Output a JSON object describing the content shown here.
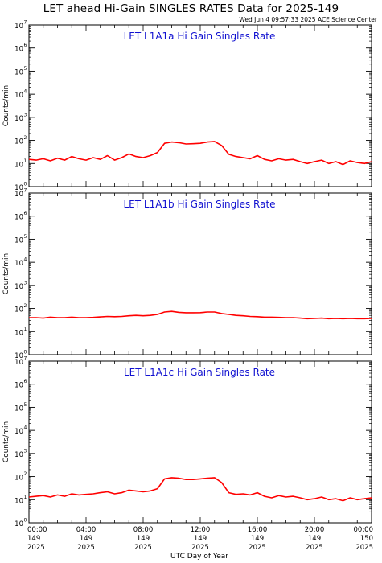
{
  "header": {
    "title": "LET ahead Hi-Gain SINGLES RATES Data for 2025-149",
    "timestamp": "Wed Jun  4 09:57:33 2025 ACE Science Center"
  },
  "chart_data": {
    "type": "line",
    "xlabel": "UTC Day of Year",
    "ylabel": "Counts/min",
    "y_scale": "log",
    "ylim": [
      1,
      10000000
    ],
    "xlim": [
      0,
      24
    ],
    "y_ticks": [
      {
        "base": "10",
        "exp": "0"
      },
      {
        "base": "10",
        "exp": "1"
      },
      {
        "base": "10",
        "exp": "2"
      },
      {
        "base": "10",
        "exp": "3"
      },
      {
        "base": "10",
        "exp": "4"
      },
      {
        "base": "10",
        "exp": "5"
      },
      {
        "base": "10",
        "exp": "6"
      },
      {
        "base": "10",
        "exp": "7"
      }
    ],
    "x_ticks": [
      {
        "hour": 0,
        "time": "00:00",
        "day": "149",
        "year": "2025"
      },
      {
        "hour": 4,
        "time": "04:00",
        "day": "149",
        "year": "2025"
      },
      {
        "hour": 8,
        "time": "08:00",
        "day": "149",
        "year": "2025"
      },
      {
        "hour": 12,
        "time": "12:00",
        "day": "149",
        "year": "2025"
      },
      {
        "hour": 16,
        "time": "16:00",
        "day": "149",
        "year": "2025"
      },
      {
        "hour": 20,
        "time": "20:00",
        "day": "149",
        "year": "2025"
      },
      {
        "hour": 24,
        "time": "00:00",
        "day": "150",
        "year": "2025"
      }
    ],
    "line_color": "#ff0000",
    "title_color": "#1010d0",
    "panels": [
      {
        "title": "LET L1A1a Hi Gain Singles Rate",
        "series": {
          "x": [
            0,
            0.5,
            1,
            1.5,
            2,
            2.5,
            3,
            3.5,
            4,
            4.5,
            5,
            5.5,
            6,
            6.5,
            7,
            7.5,
            8,
            8.5,
            9,
            9.5,
            10,
            10.5,
            11,
            11.5,
            12,
            12.5,
            13,
            13.5,
            14,
            14.5,
            15,
            15.5,
            16,
            16.5,
            17,
            17.5,
            18,
            18.5,
            19,
            19.5,
            20,
            20.5,
            21,
            21.5,
            22,
            22.5,
            23,
            23.5,
            24
          ],
          "y": [
            15,
            14,
            16,
            13,
            17,
            14,
            20,
            16,
            14,
            18,
            15,
            22,
            14,
            18,
            26,
            20,
            18,
            22,
            30,
            75,
            85,
            80,
            70,
            72,
            75,
            85,
            90,
            60,
            25,
            20,
            18,
            16,
            22,
            15,
            13,
            16,
            14,
            15,
            12,
            10,
            12,
            14,
            10,
            12,
            9,
            13,
            11,
            10,
            12
          ]
        }
      },
      {
        "title": "LET L1A1b Hi Gain Singles Rate",
        "series": {
          "x": [
            0,
            0.5,
            1,
            1.5,
            2,
            2.5,
            3,
            3.5,
            4,
            4.5,
            5,
            5.5,
            6,
            6.5,
            7,
            7.5,
            8,
            8.5,
            9,
            9.5,
            10,
            10.5,
            11,
            11.5,
            12,
            12.5,
            13,
            13.5,
            14,
            14.5,
            15,
            15.5,
            16,
            16.5,
            17,
            17.5,
            18,
            18.5,
            19,
            19.5,
            20,
            20.5,
            21,
            21.5,
            22,
            22.5,
            23,
            23.5,
            24
          ],
          "y": [
            40,
            40,
            38,
            42,
            40,
            40,
            42,
            40,
            40,
            41,
            43,
            45,
            44,
            45,
            48,
            50,
            48,
            50,
            55,
            70,
            75,
            68,
            65,
            65,
            66,
            70,
            70,
            60,
            55,
            50,
            48,
            45,
            44,
            42,
            42,
            41,
            40,
            40,
            38,
            36,
            37,
            38,
            36,
            37,
            36,
            37,
            36,
            36,
            37
          ]
        }
      },
      {
        "title": "LET L1A1c Hi Gain Singles Rate",
        "series": {
          "x": [
            0,
            0.5,
            1,
            1.5,
            2,
            2.5,
            3,
            3.5,
            4,
            4.5,
            5,
            5.5,
            6,
            6.5,
            7,
            7.5,
            8,
            8.5,
            9,
            9.5,
            10,
            10.5,
            11,
            11.5,
            12,
            12.5,
            13,
            13.5,
            14,
            14.5,
            15,
            15.5,
            16,
            16.5,
            17,
            17.5,
            18,
            18.5,
            19,
            19.5,
            20,
            20.5,
            21,
            21.5,
            22,
            22.5,
            23,
            23.5,
            24
          ],
          "y": [
            13,
            14,
            15,
            13,
            16,
            14,
            18,
            16,
            17,
            18,
            20,
            22,
            18,
            20,
            26,
            24,
            22,
            24,
            30,
            80,
            90,
            85,
            75,
            75,
            80,
            85,
            90,
            55,
            20,
            17,
            18,
            16,
            20,
            14,
            12,
            15,
            13,
            14,
            12,
            10,
            11,
            13,
            10,
            11,
            9,
            12,
            10,
            11,
            12
          ]
        }
      }
    ]
  }
}
